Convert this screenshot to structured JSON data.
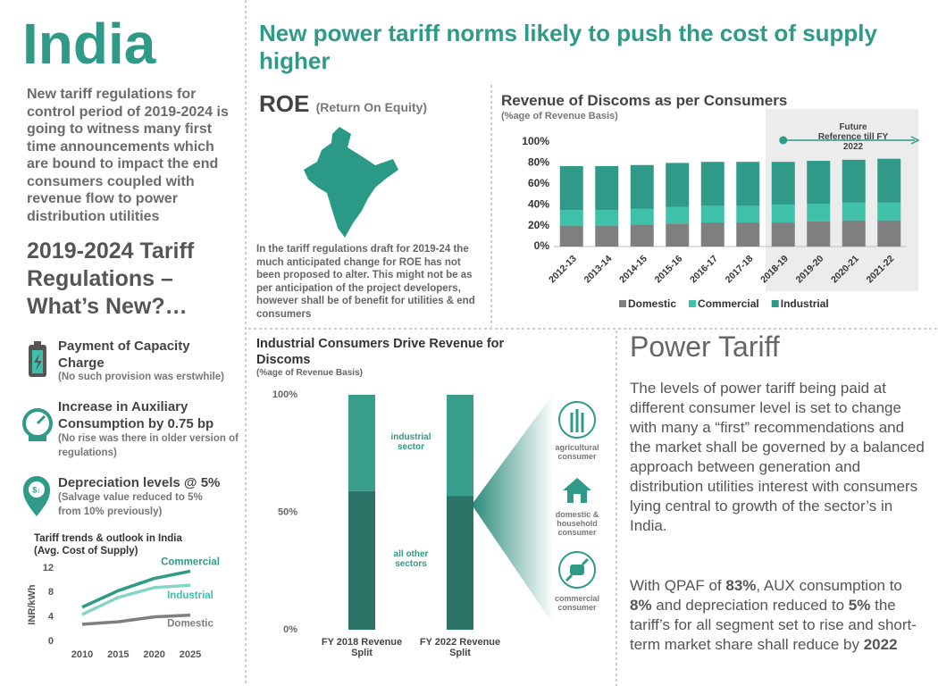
{
  "header": {
    "brand": "India",
    "title": "New power tariff norms likely to push the cost of supply higher"
  },
  "sidebar": {
    "intro": "New tariff regulations for control period of 2019-2024 is going to witness many first time announcements which are bound to impact the end consumers coupled with revenue flow to power distribution utilities",
    "heading": "2019-2024 Tariff Regulations – What’s New?…",
    "items": [
      {
        "title": "Payment of Capacity Charge",
        "note": "(No such provision was erstwhile)"
      },
      {
        "title": "Increase in Auxiliary Consumption by 0.75 bp",
        "note": "(No rise was there in older version of regulations)"
      },
      {
        "title": "Depreciation levels @ 5%",
        "note": "(Salvage value reduced to 5% from 10% previously)"
      }
    ]
  },
  "roe": {
    "title": "ROE",
    "subtitle": "(Return On Equity)",
    "text": "In the tariff regulations draft for 2019-24 the much anticipated change for ROE has not been proposed to alter. This might not be as per anticipation of the project developers, however shall be of benefit for utilities & end consumers"
  },
  "power_tariff": {
    "title": "Power Tariff",
    "paragraph": "The levels of power tariff being paid at different consumer level is set to change with many a “first” recommendations and the market shall be governed by a balanced approach between generation and distribution utilities interest with consumers lying central to growth of the sector’s in India.",
    "summary": [
      "With QPAF of ",
      "83%",
      ", AUX consumption to ",
      "8%",
      " and depreciation reduced to ",
      "5%",
      " the tariff’s for all segment set to rise and short-term market share shall reduce by ",
      "2022"
    ]
  },
  "chart_data": [
    {
      "type": "line",
      "title": "Tariff trends & outlook in India",
      "subtitle": "(Avg. Cost of Supply)",
      "y_label": "INR/kWh",
      "x": [
        2010,
        2015,
        2020,
        2025
      ],
      "xlim": [
        2010,
        2025
      ],
      "xticks": [
        2010,
        2015,
        2020,
        2025
      ],
      "ylim": [
        0,
        12
      ],
      "yticks": [
        0,
        4,
        8,
        12
      ],
      "series": [
        {
          "name": "Commercial",
          "color": "#2e9a87",
          "values": [
            5.6,
            8.3,
            10.3,
            11.5
          ]
        },
        {
          "name": "Industrial",
          "color": "#85d5c6",
          "values": [
            4.4,
            7.2,
            8.8,
            9.2
          ]
        },
        {
          "name": "Domestic",
          "color": "#7f7f7f",
          "values": [
            2.8,
            3.2,
            4.0,
            4.3
          ]
        }
      ]
    },
    {
      "type": "stacked_bar",
      "title": "Revenue of Discoms as per Consumers",
      "subtitle": "(%age of Revenue Basis)",
      "categories": [
        "2012-13",
        "2013-14",
        "2014-15",
        "2015-16",
        "2016-17",
        "2017-18",
        "2018-19",
        "2019-20",
        "2020-21",
        "2021-22"
      ],
      "ylim": [
        0,
        100
      ],
      "yticks": [
        {
          "value": 0,
          "label": "0%"
        },
        {
          "value": 20,
          "label": "20%"
        },
        {
          "value": 40,
          "label": "40%"
        },
        {
          "value": 60,
          "label": "60%"
        },
        {
          "value": 80,
          "label": "80%"
        },
        {
          "value": 100,
          "label": "100%"
        }
      ],
      "series": [
        {
          "name": "Domestic",
          "color": "#7f7f7f",
          "values": [
            20,
            20,
            21,
            22,
            23,
            23,
            23,
            24,
            25,
            25
          ]
        },
        {
          "name": "Commercial",
          "color": "#3fc0a8",
          "values": [
            15,
            15,
            15,
            16,
            16,
            16,
            17,
            17,
            17,
            17
          ]
        },
        {
          "name": "Industrial",
          "color": "#2e9a87",
          "values": [
            42,
            42,
            42,
            42,
            42,
            42,
            41,
            41,
            41,
            42
          ]
        }
      ],
      "annotation": "Future Reference till FY 2022",
      "highlight_from": "2018-19",
      "legend": "bottom"
    },
    {
      "type": "stacked_bar",
      "title": "Industrial Consumers Drive Revenue for Discoms",
      "subtitle": "(%age of Revenue Basis)",
      "categories": [
        "FY 2018 Revenue Split",
        "FY 2022 Revenue Split"
      ],
      "ylim": [
        0,
        100
      ],
      "yticks": [
        {
          "value": 0,
          "label": "0%"
        },
        {
          "value": 50,
          "label": "50%"
        },
        {
          "value": 100,
          "label": "100%"
        }
      ],
      "series": [
        {
          "name": "all other sectors",
          "color": "#2b7366",
          "values": [
            59,
            57
          ]
        },
        {
          "name": "industrial sector",
          "color": "#3a9e8d",
          "values": [
            41,
            43
          ]
        }
      ],
      "annotations": [
        "agricultural consumer",
        "domestic & household consumer",
        "commercial consumer"
      ]
    }
  ]
}
